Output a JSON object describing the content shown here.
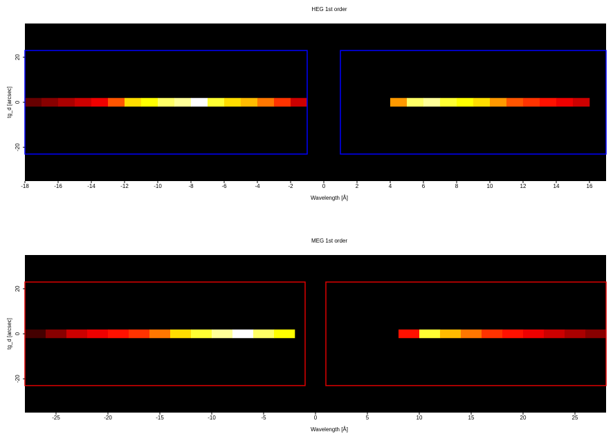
{
  "chart_data": [
    {
      "type": "heatmap",
      "title": "HEG 1st order",
      "x_label": "Wavelength [Å]",
      "y_label": "tg_d [arcsec]",
      "xlim": [
        -18,
        17
      ],
      "ylim": [
        -35,
        35
      ],
      "xticks": [
        -18,
        -16,
        -14,
        -12,
        -10,
        -8,
        -6,
        -4,
        -2,
        0,
        2,
        4,
        6,
        8,
        10,
        12,
        14,
        16
      ],
      "yticks": [
        -20,
        0,
        20
      ],
      "colormap": "hot",
      "background": "#000000",
      "strip": {
        "y_range": [
          -1,
          1
        ],
        "bins": [
          -18,
          -17,
          -16,
          -15,
          -14,
          -13,
          -12,
          -11,
          -10,
          -9,
          -8,
          -7,
          -6,
          -5,
          -4,
          -3,
          -2,
          -1,
          0,
          1,
          2,
          3,
          4,
          5,
          6,
          7,
          8,
          9,
          10,
          11,
          12,
          13,
          14,
          15,
          16,
          17
        ],
        "values": [
          0.15,
          0.2,
          0.25,
          0.3,
          0.35,
          0.5,
          0.7,
          0.75,
          0.85,
          0.9,
          1.0,
          0.8,
          0.7,
          0.65,
          0.55,
          0.45,
          0.3,
          null,
          null,
          null,
          null,
          null,
          0.6,
          0.85,
          0.9,
          0.8,
          0.75,
          0.7,
          0.6,
          0.5,
          0.45,
          0.4,
          0.35,
          0.3,
          null
        ]
      },
      "regions": {
        "color": "#0000ff",
        "boxes": [
          {
            "x": [
              -18,
              -1
            ],
            "y": [
              -23,
              23
            ]
          },
          {
            "x": [
              1,
              17
            ],
            "y": [
              -23,
              23
            ]
          }
        ]
      }
    },
    {
      "type": "heatmap",
      "title": "MEG 1st order",
      "x_label": "Wavelength [Å]",
      "y_label": "tg_d [arcsec]",
      "xlim": [
        -28,
        28
      ],
      "ylim": [
        -35,
        35
      ],
      "xticks": [
        -25,
        -20,
        -15,
        -10,
        -5,
        0,
        5,
        10,
        15,
        20,
        25
      ],
      "yticks": [
        -20,
        0,
        20
      ],
      "colormap": "hot",
      "background": "#000000",
      "strip": {
        "y_range": [
          -1,
          1
        ],
        "bins": [
          -28,
          -26,
          -24,
          -22,
          -20,
          -18,
          -16,
          -14,
          -12,
          -10,
          -8,
          -6,
          -4,
          -2,
          0,
          2,
          4,
          6,
          8,
          10,
          12,
          14,
          16,
          18,
          20,
          22,
          24,
          26,
          28
        ],
        "values": [
          0.1,
          0.2,
          0.3,
          0.35,
          0.4,
          0.45,
          0.55,
          0.7,
          0.8,
          0.9,
          1.0,
          0.85,
          0.75,
          null,
          null,
          null,
          null,
          null,
          0.4,
          0.8,
          0.65,
          0.55,
          0.45,
          0.4,
          0.35,
          0.3,
          0.25,
          0.2
        ]
      },
      "regions": {
        "color": "#dd0000",
        "boxes": [
          {
            "x": [
              -28,
              -1
            ],
            "y": [
              -23,
              23
            ]
          },
          {
            "x": [
              1,
              28
            ],
            "y": [
              -23,
              23
            ]
          }
        ]
      }
    }
  ]
}
